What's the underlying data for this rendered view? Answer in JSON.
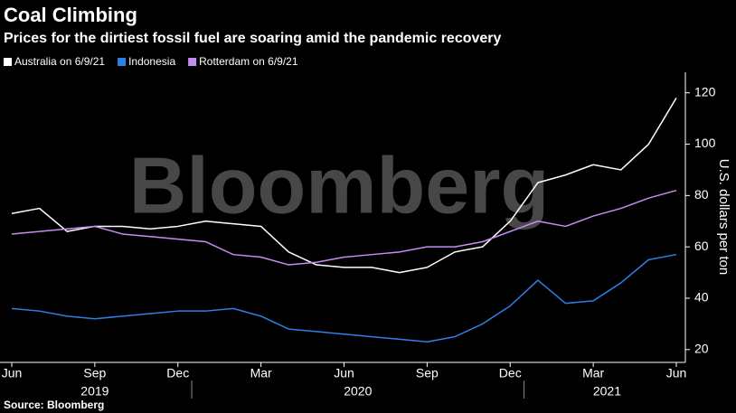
{
  "chart_data": {
    "type": "line",
    "title": "Coal Climbing",
    "subtitle": "Prices for the dirtiest fossil fuel are soaring amid the pandemic recovery",
    "watermark": "Bloomberg",
    "source": "Source: Bloomberg",
    "y_label": "U.S. dollars per ton",
    "x": [
      "2019-06",
      "2019-07",
      "2019-08",
      "2019-09",
      "2019-10",
      "2019-11",
      "2019-12",
      "2020-01",
      "2020-02",
      "2020-03",
      "2020-04",
      "2020-05",
      "2020-06",
      "2020-07",
      "2020-08",
      "2020-09",
      "2020-10",
      "2020-11",
      "2020-12",
      "2021-01",
      "2021-02",
      "2021-03",
      "2021-04",
      "2021-05",
      "2021-06"
    ],
    "series": [
      {
        "name": "Australia on 6/9/21",
        "color": "#ffffff",
        "values": [
          73,
          75,
          66,
          68,
          68,
          67,
          68,
          70,
          69,
          68,
          58,
          53,
          52,
          52,
          50,
          52,
          58,
          60,
          70,
          85,
          88,
          92,
          90,
          100,
          118
        ]
      },
      {
        "name": "Indonesia",
        "color": "#2f80e6",
        "values": [
          36,
          35,
          33,
          32,
          33,
          34,
          35,
          35,
          36,
          33,
          28,
          27,
          26,
          25,
          24,
          23,
          25,
          30,
          37,
          47,
          38,
          39,
          46,
          55,
          57
        ]
      },
      {
        "name": "Rotterdam on 6/9/21",
        "color": "#c68cf2",
        "values": [
          65,
          66,
          67,
          68,
          65,
          64,
          63,
          62,
          57,
          56,
          53,
          54,
          56,
          57,
          58,
          60,
          60,
          62,
          66,
          70,
          68,
          72,
          75,
          79,
          82
        ]
      }
    ],
    "xlim": [
      "2019-06",
      "2021-06"
    ],
    "xticks": [
      {
        "value": "2019-06",
        "label": "Jun"
      },
      {
        "value": "2019-09",
        "label": "Sep"
      },
      {
        "value": "2019-12",
        "label": "Dec"
      },
      {
        "value": "2020-03",
        "label": "Mar"
      },
      {
        "value": "2020-06",
        "label": "Jun"
      },
      {
        "value": "2020-09",
        "label": "Sep"
      },
      {
        "value": "2020-12",
        "label": "Dec"
      },
      {
        "value": "2021-03",
        "label": "Mar"
      },
      {
        "value": "2021-06",
        "label": "Jun"
      }
    ],
    "years": [
      "2019",
      "2020",
      "2021"
    ],
    "ylim": [
      15,
      128
    ],
    "yticks": [
      20,
      40,
      60,
      80,
      100,
      120
    ]
  }
}
